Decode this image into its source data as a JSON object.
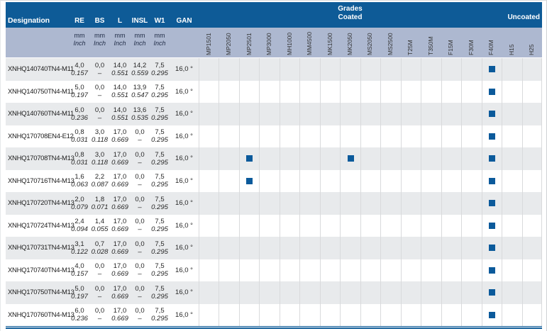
{
  "header": {
    "designation_label": "Designation",
    "grades_title": "Grades",
    "coated_label": "Coated",
    "uncoated_label": "Uncoated"
  },
  "columns": [
    {
      "key": "re",
      "label": "RE",
      "unit_top": "mm",
      "unit_bottom": "Inch"
    },
    {
      "key": "bs",
      "label": "BS",
      "unit_top": "mm",
      "unit_bottom": "Inch"
    },
    {
      "key": "l",
      "label": "L",
      "unit_top": "mm",
      "unit_bottom": "Inch"
    },
    {
      "key": "insl",
      "label": "INSL",
      "unit_top": "mm",
      "unit_bottom": "Inch"
    },
    {
      "key": "w1",
      "label": "W1",
      "unit_top": "mm",
      "unit_bottom": "Inch"
    },
    {
      "key": "gan",
      "label": "GAN",
      "unit_top": "",
      "unit_bottom": ""
    }
  ],
  "grades": {
    "coated": [
      "MP1501",
      "MP2050",
      "MP2501",
      "MP3000",
      "MH1000",
      "MM4500",
      "MK1500",
      "MK2050",
      "MS2050",
      "MS2500",
      "T25M",
      "T350M",
      "F15M",
      "F30M",
      "F40M"
    ],
    "uncoated": [
      "H15",
      "H25"
    ]
  },
  "rows": [
    {
      "designation": "XNHQ140740TN4-M11",
      "values": [
        [
          "4,0",
          "0.157"
        ],
        [
          "0,0",
          "–"
        ],
        [
          "14,0",
          "0.551"
        ],
        [
          "14,2",
          "0.559"
        ],
        [
          "7,5",
          "0.295"
        ]
      ],
      "gan": "16,0 °",
      "marks": [
        "F40M"
      ]
    },
    {
      "designation": "XNHQ140750TN4-M11",
      "values": [
        [
          "5,0",
          "0.197"
        ],
        [
          "0,0",
          "–"
        ],
        [
          "14,0",
          "0.551"
        ],
        [
          "13,9",
          "0.547"
        ],
        [
          "7,5",
          "0.295"
        ]
      ],
      "gan": "16,0 °",
      "marks": [
        "F40M"
      ]
    },
    {
      "designation": "XNHQ140760TN4-M11",
      "values": [
        [
          "6,0",
          "0.236"
        ],
        [
          "0,0",
          "–"
        ],
        [
          "14,0",
          "0.551"
        ],
        [
          "13,6",
          "0.535"
        ],
        [
          "7,5",
          "0.295"
        ]
      ],
      "gan": "16,0 °",
      "marks": [
        "F40M"
      ]
    },
    {
      "designation": "XNHQ170708EN4-E12",
      "values": [
        [
          "0,8",
          "0.031"
        ],
        [
          "3,0",
          "0.118"
        ],
        [
          "17,0",
          "0.669"
        ],
        [
          "0,0",
          "–"
        ],
        [
          "7,5",
          "0.295"
        ]
      ],
      "gan": "16,0 °",
      "marks": [
        "F40M"
      ]
    },
    {
      "designation": "XNHQ170708TN4-M13",
      "values": [
        [
          "0,8",
          "0.031"
        ],
        [
          "3,0",
          "0.118"
        ],
        [
          "17,0",
          "0.669"
        ],
        [
          "0,0",
          "–"
        ],
        [
          "7,5",
          "0.295"
        ]
      ],
      "gan": "16,0 °",
      "marks": [
        "MP2501",
        "MK2050",
        "F40M"
      ]
    },
    {
      "designation": "XNHQ170716TN4-M13",
      "values": [
        [
          "1,6",
          "0.063"
        ],
        [
          "2,2",
          "0.087"
        ],
        [
          "17,0",
          "0.669"
        ],
        [
          "0,0",
          "–"
        ],
        [
          "7,5",
          "0.295"
        ]
      ],
      "gan": "16,0 °",
      "marks": [
        "MP2501",
        "F40M"
      ]
    },
    {
      "designation": "XNHQ170720TN4-M13",
      "values": [
        [
          "2,0",
          "0.079"
        ],
        [
          "1,8",
          "0.071"
        ],
        [
          "17,0",
          "0.669"
        ],
        [
          "0,0",
          "–"
        ],
        [
          "7,5",
          "0.295"
        ]
      ],
      "gan": "16,0 °",
      "marks": [
        "F40M"
      ]
    },
    {
      "designation": "XNHQ170724TN4-M13",
      "values": [
        [
          "2,4",
          "0.094"
        ],
        [
          "1,4",
          "0.055"
        ],
        [
          "17,0",
          "0.669"
        ],
        [
          "0,0",
          "–"
        ],
        [
          "7,5",
          "0.295"
        ]
      ],
      "gan": "16,0 °",
      "marks": [
        "F40M"
      ]
    },
    {
      "designation": "XNHQ170731TN4-M13",
      "values": [
        [
          "3,1",
          "0.122"
        ],
        [
          "0,7",
          "0.028"
        ],
        [
          "17,0",
          "0.669"
        ],
        [
          "0,0",
          "–"
        ],
        [
          "7,5",
          "0.295"
        ]
      ],
      "gan": "16,0 °",
      "marks": [
        "F40M"
      ]
    },
    {
      "designation": "XNHQ170740TN4-M13",
      "values": [
        [
          "4,0",
          "0.157"
        ],
        [
          "0,0",
          "–"
        ],
        [
          "17,0",
          "0.669"
        ],
        [
          "0,0",
          "–"
        ],
        [
          "7,5",
          "0.295"
        ]
      ],
      "gan": "16,0 °",
      "marks": [
        "F40M"
      ]
    },
    {
      "designation": "XNHQ170750TN4-M13",
      "values": [
        [
          "5,0",
          "0.197"
        ],
        [
          "0,0",
          "–"
        ],
        [
          "17,0",
          "0.669"
        ],
        [
          "0,0",
          "–"
        ],
        [
          "7,5",
          "0.295"
        ]
      ],
      "gan": "16,0 °",
      "marks": [
        "F40M"
      ]
    },
    {
      "designation": "XNHQ170760TN4-M13",
      "values": [
        [
          "6,0",
          "0.236"
        ],
        [
          "0,0",
          "–"
        ],
        [
          "17,0",
          "0.669"
        ],
        [
          "0,0",
          "–"
        ],
        [
          "7,5",
          "0.295"
        ]
      ],
      "gan": "16,0 °",
      "marks": [
        "F40M"
      ]
    }
  ],
  "colors": {
    "header_blue": "#0e5b97",
    "subheader": "#adb8d0",
    "stripe": "#e8eaec",
    "mark": "#0b5a9b",
    "grid_line": "#d9dadc",
    "rule": "#0e5b97",
    "text": "#262626"
  }
}
